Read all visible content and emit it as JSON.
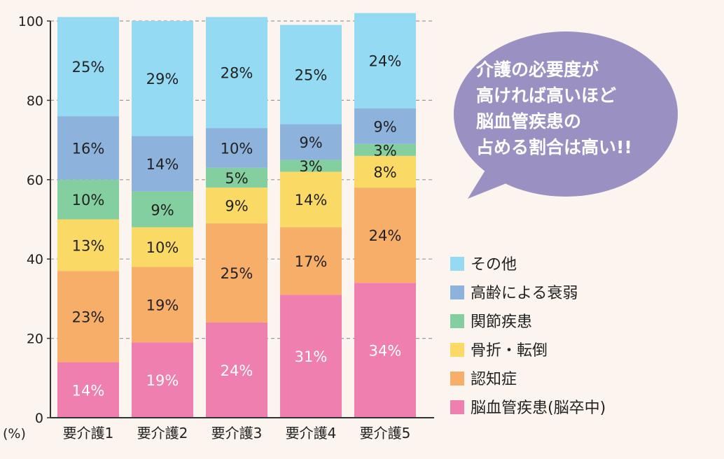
{
  "chart_data": {
    "type": "bar",
    "stacked": true,
    "categories": [
      "要介護1",
      "要介護2",
      "要介護3",
      "要介護4",
      "要介護5"
    ],
    "unit_label": "(%)",
    "ylim": [
      0,
      100
    ],
    "yticks": [
      0,
      20,
      40,
      60,
      80,
      100
    ],
    "grid": true,
    "legend_position": "right",
    "series": [
      {
        "name": "脳血管疾患(脳卒中)",
        "color": "#ee7fae",
        "values": [
          14,
          19,
          24,
          31,
          34
        ],
        "labels": [
          "14%",
          "19%",
          "24%",
          "31%",
          "34%"
        ],
        "label_color": "#ffffff"
      },
      {
        "name": "認知症",
        "color": "#f7ae69",
        "values": [
          23,
          19,
          25,
          17,
          24
        ],
        "labels": [
          "23%",
          "19%",
          "25%",
          "17%",
          "24%"
        ],
        "label_color": "#222222"
      },
      {
        "name": "骨折・転倒",
        "color": "#fbd965",
        "values": [
          13,
          10,
          9,
          14,
          8
        ],
        "labels": [
          "13%",
          "10%",
          "9%",
          "14%",
          "8%"
        ],
        "label_color": "#222222"
      },
      {
        "name": "関節疾患",
        "color": "#84cf9f",
        "values": [
          10,
          9,
          5,
          3,
          3
        ],
        "labels": [
          "10%",
          "9%",
          "5%",
          "3%",
          "3%"
        ],
        "label_color": "#222222"
      },
      {
        "name": "高齢による衰弱",
        "color": "#8db2dc",
        "values": [
          16,
          14,
          10,
          9,
          9
        ],
        "labels": [
          "16%",
          "14%",
          "10%",
          "9%",
          "9%"
        ],
        "label_color": "#222222"
      },
      {
        "name": "その他",
        "color": "#94daf3",
        "values": [
          25,
          29,
          28,
          25,
          24
        ],
        "labels": [
          "25%",
          "29%",
          "28%",
          "25%",
          "24%"
        ],
        "label_color": "#222222"
      }
    ],
    "legend_order": [
      "その他",
      "高齢による衰弱",
      "関節疾患",
      "骨折・転倒",
      "認知症",
      "脳血管疾患(脳卒中)"
    ],
    "annotation": {
      "lines": [
        "介護の必要度が",
        "高ければ高いほど",
        "脳血管疾患の",
        "占める割合は高い!!"
      ],
      "bubble_color": "#9a91c2",
      "text_color": "#ffffff"
    }
  }
}
